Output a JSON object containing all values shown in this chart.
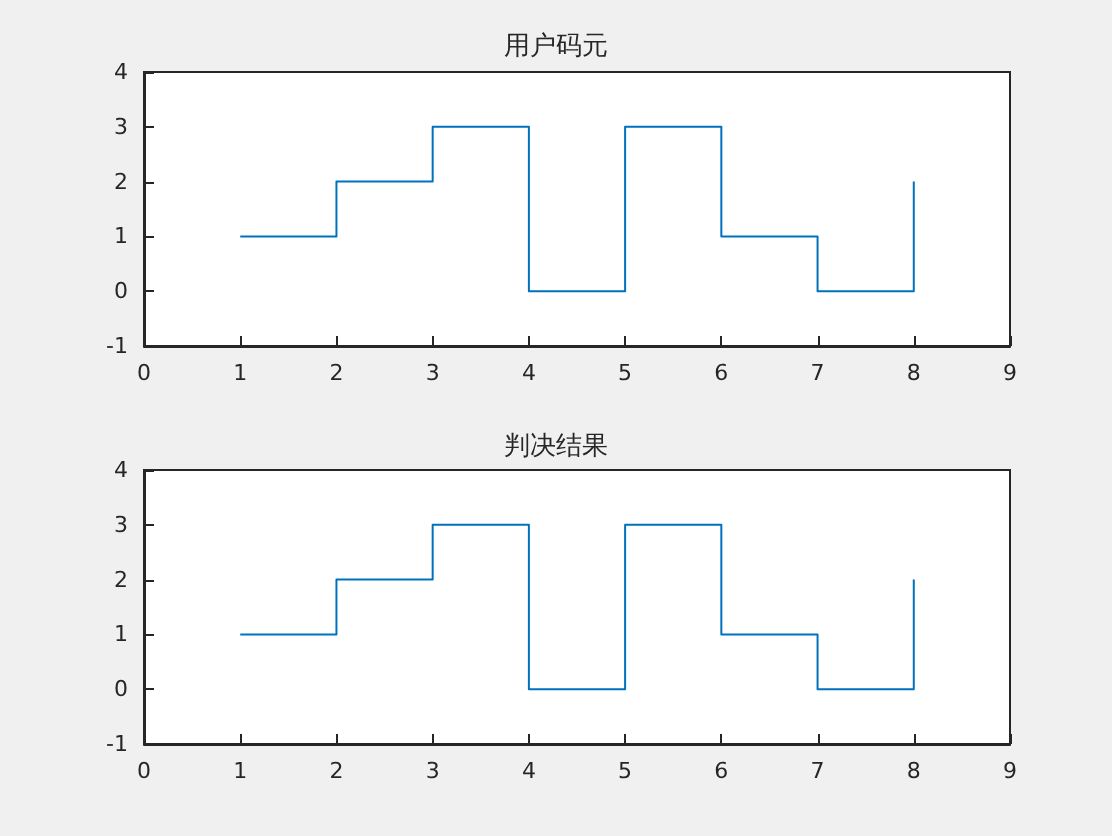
{
  "chart_data": [
    {
      "type": "step",
      "title": "用户码元",
      "x": [
        1,
        2,
        3,
        4,
        5,
        6,
        7,
        8
      ],
      "values": [
        1,
        2,
        3,
        0,
        3,
        1,
        0,
        2
      ],
      "color": "#0072bd",
      "xlim": [
        0,
        9
      ],
      "xticks": [
        0,
        1,
        2,
        3,
        4,
        5,
        6,
        7,
        8,
        9
      ],
      "ylim": [
        -1,
        4
      ],
      "yticks": [
        -1,
        0,
        1,
        2,
        3,
        4
      ],
      "grid": false
    },
    {
      "type": "step",
      "title": "判决结果",
      "x": [
        1,
        2,
        3,
        4,
        5,
        6,
        7,
        8
      ],
      "values": [
        1,
        2,
        3,
        0,
        3,
        1,
        0,
        2
      ],
      "color": "#0072bd",
      "xlim": [
        0,
        9
      ],
      "xticks": [
        0,
        1,
        2,
        3,
        4,
        5,
        6,
        7,
        8,
        9
      ],
      "ylim": [
        -1,
        4
      ],
      "yticks": [
        -1,
        0,
        1,
        2,
        3,
        4
      ],
      "grid": false
    }
  ]
}
